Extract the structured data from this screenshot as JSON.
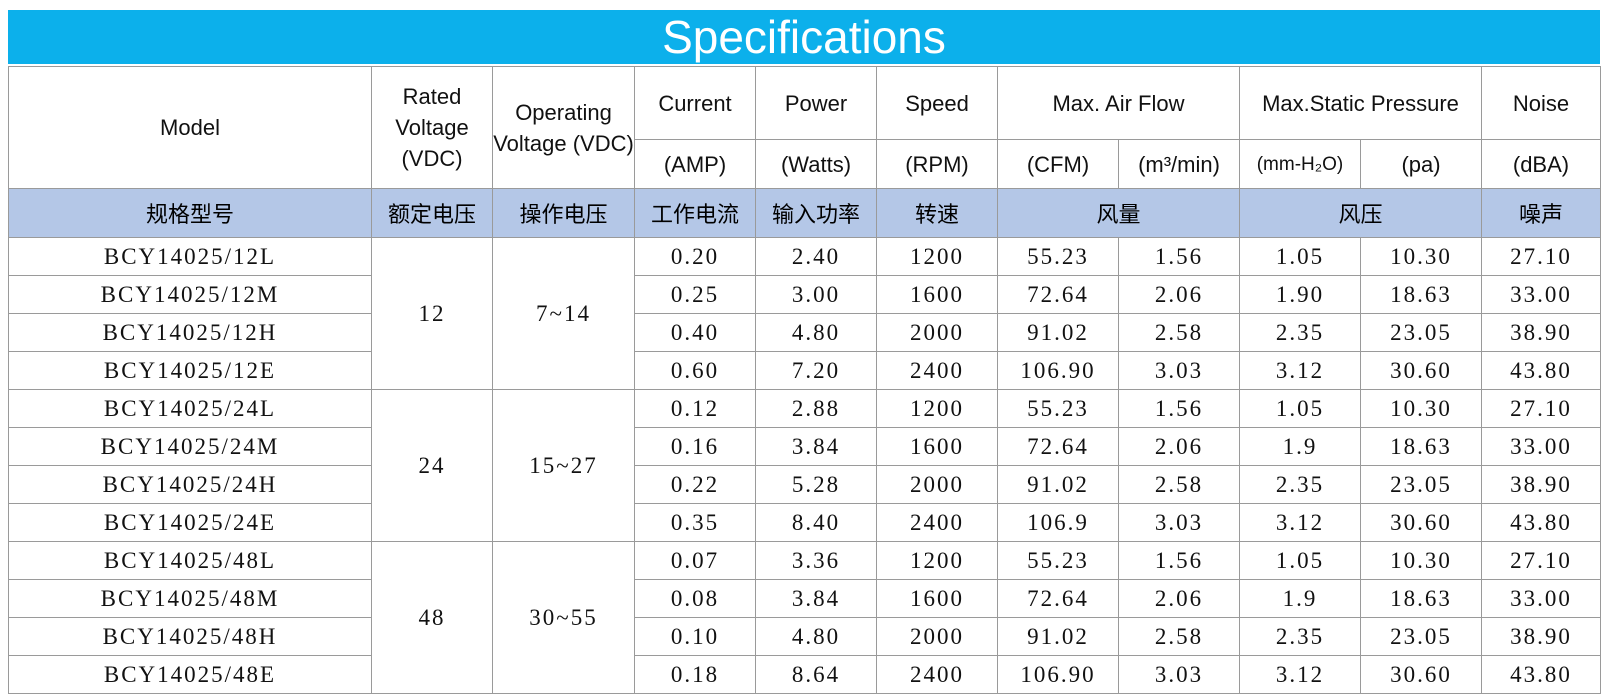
{
  "title": "Specifications",
  "header": {
    "row1": [
      "Model",
      "Rated Voltage (VDC)",
      "Operating Voltage (VDC)",
      "Current",
      "Power",
      "Speed",
      "Max. Air Flow",
      "Max.Static Pressure",
      "Noise"
    ],
    "row2": [
      "(AMP)",
      "(Watts)",
      "(RPM)",
      "(CFM)",
      "(m³/min)",
      "(mm-H₂O)",
      "(pa)",
      "(dBA)"
    ],
    "cn": [
      "规格型号",
      "额定电压",
      "操作电压",
      "工作电流",
      "输入功率",
      "转速",
      "风量",
      "风压",
      "噪声"
    ]
  },
  "groups": [
    {
      "rated": "12",
      "operating": "7~14",
      "rows": [
        [
          "BCY14025/12L",
          "0.20",
          "2.40",
          "1200",
          "55.23",
          "1.56",
          "1.05",
          "10.30",
          "27.10"
        ],
        [
          "BCY14025/12M",
          "0.25",
          "3.00",
          "1600",
          "72.64",
          "2.06",
          "1.90",
          "18.63",
          "33.00"
        ],
        [
          "BCY14025/12H",
          "0.40",
          "4.80",
          "2000",
          "91.02",
          "2.58",
          "2.35",
          "23.05",
          "38.90"
        ],
        [
          "BCY14025/12E",
          "0.60",
          "7.20",
          "2400",
          "106.90",
          "3.03",
          "3.12",
          "30.60",
          "43.80"
        ]
      ]
    },
    {
      "rated": "24",
      "operating": "15~27",
      "rows": [
        [
          "BCY14025/24L",
          "0.12",
          "2.88",
          "1200",
          "55.23",
          "1.56",
          "1.05",
          "10.30",
          "27.10"
        ],
        [
          "BCY14025/24M",
          "0.16",
          "3.84",
          "1600",
          "72.64",
          "2.06",
          "1.9",
          "18.63",
          "33.00"
        ],
        [
          "BCY14025/24H",
          "0.22",
          "5.28",
          "2000",
          "91.02",
          "2.58",
          "2.35",
          "23.05",
          "38.90"
        ],
        [
          "BCY14025/24E",
          "0.35",
          "8.40",
          "2400",
          "106.9",
          "3.03",
          "3.12",
          "30.60",
          "43.80"
        ]
      ]
    },
    {
      "rated": "48",
      "operating": "30~55",
      "rows": [
        [
          "BCY14025/48L",
          "0.07",
          "3.36",
          "1200",
          "55.23",
          "1.56",
          "1.05",
          "10.30",
          "27.10"
        ],
        [
          "BCY14025/48M",
          "0.08",
          "3.84",
          "1600",
          "72.64",
          "2.06",
          "1.9",
          "18.63",
          "33.00"
        ],
        [
          "BCY14025/48H",
          "0.10",
          "4.80",
          "2000",
          "91.02",
          "2.58",
          "2.35",
          "23.05",
          "38.90"
        ],
        [
          "BCY14025/48E",
          "0.18",
          "8.64",
          "2400",
          "106.90",
          "3.03",
          "3.12",
          "30.60",
          "43.80"
        ]
      ]
    }
  ]
}
